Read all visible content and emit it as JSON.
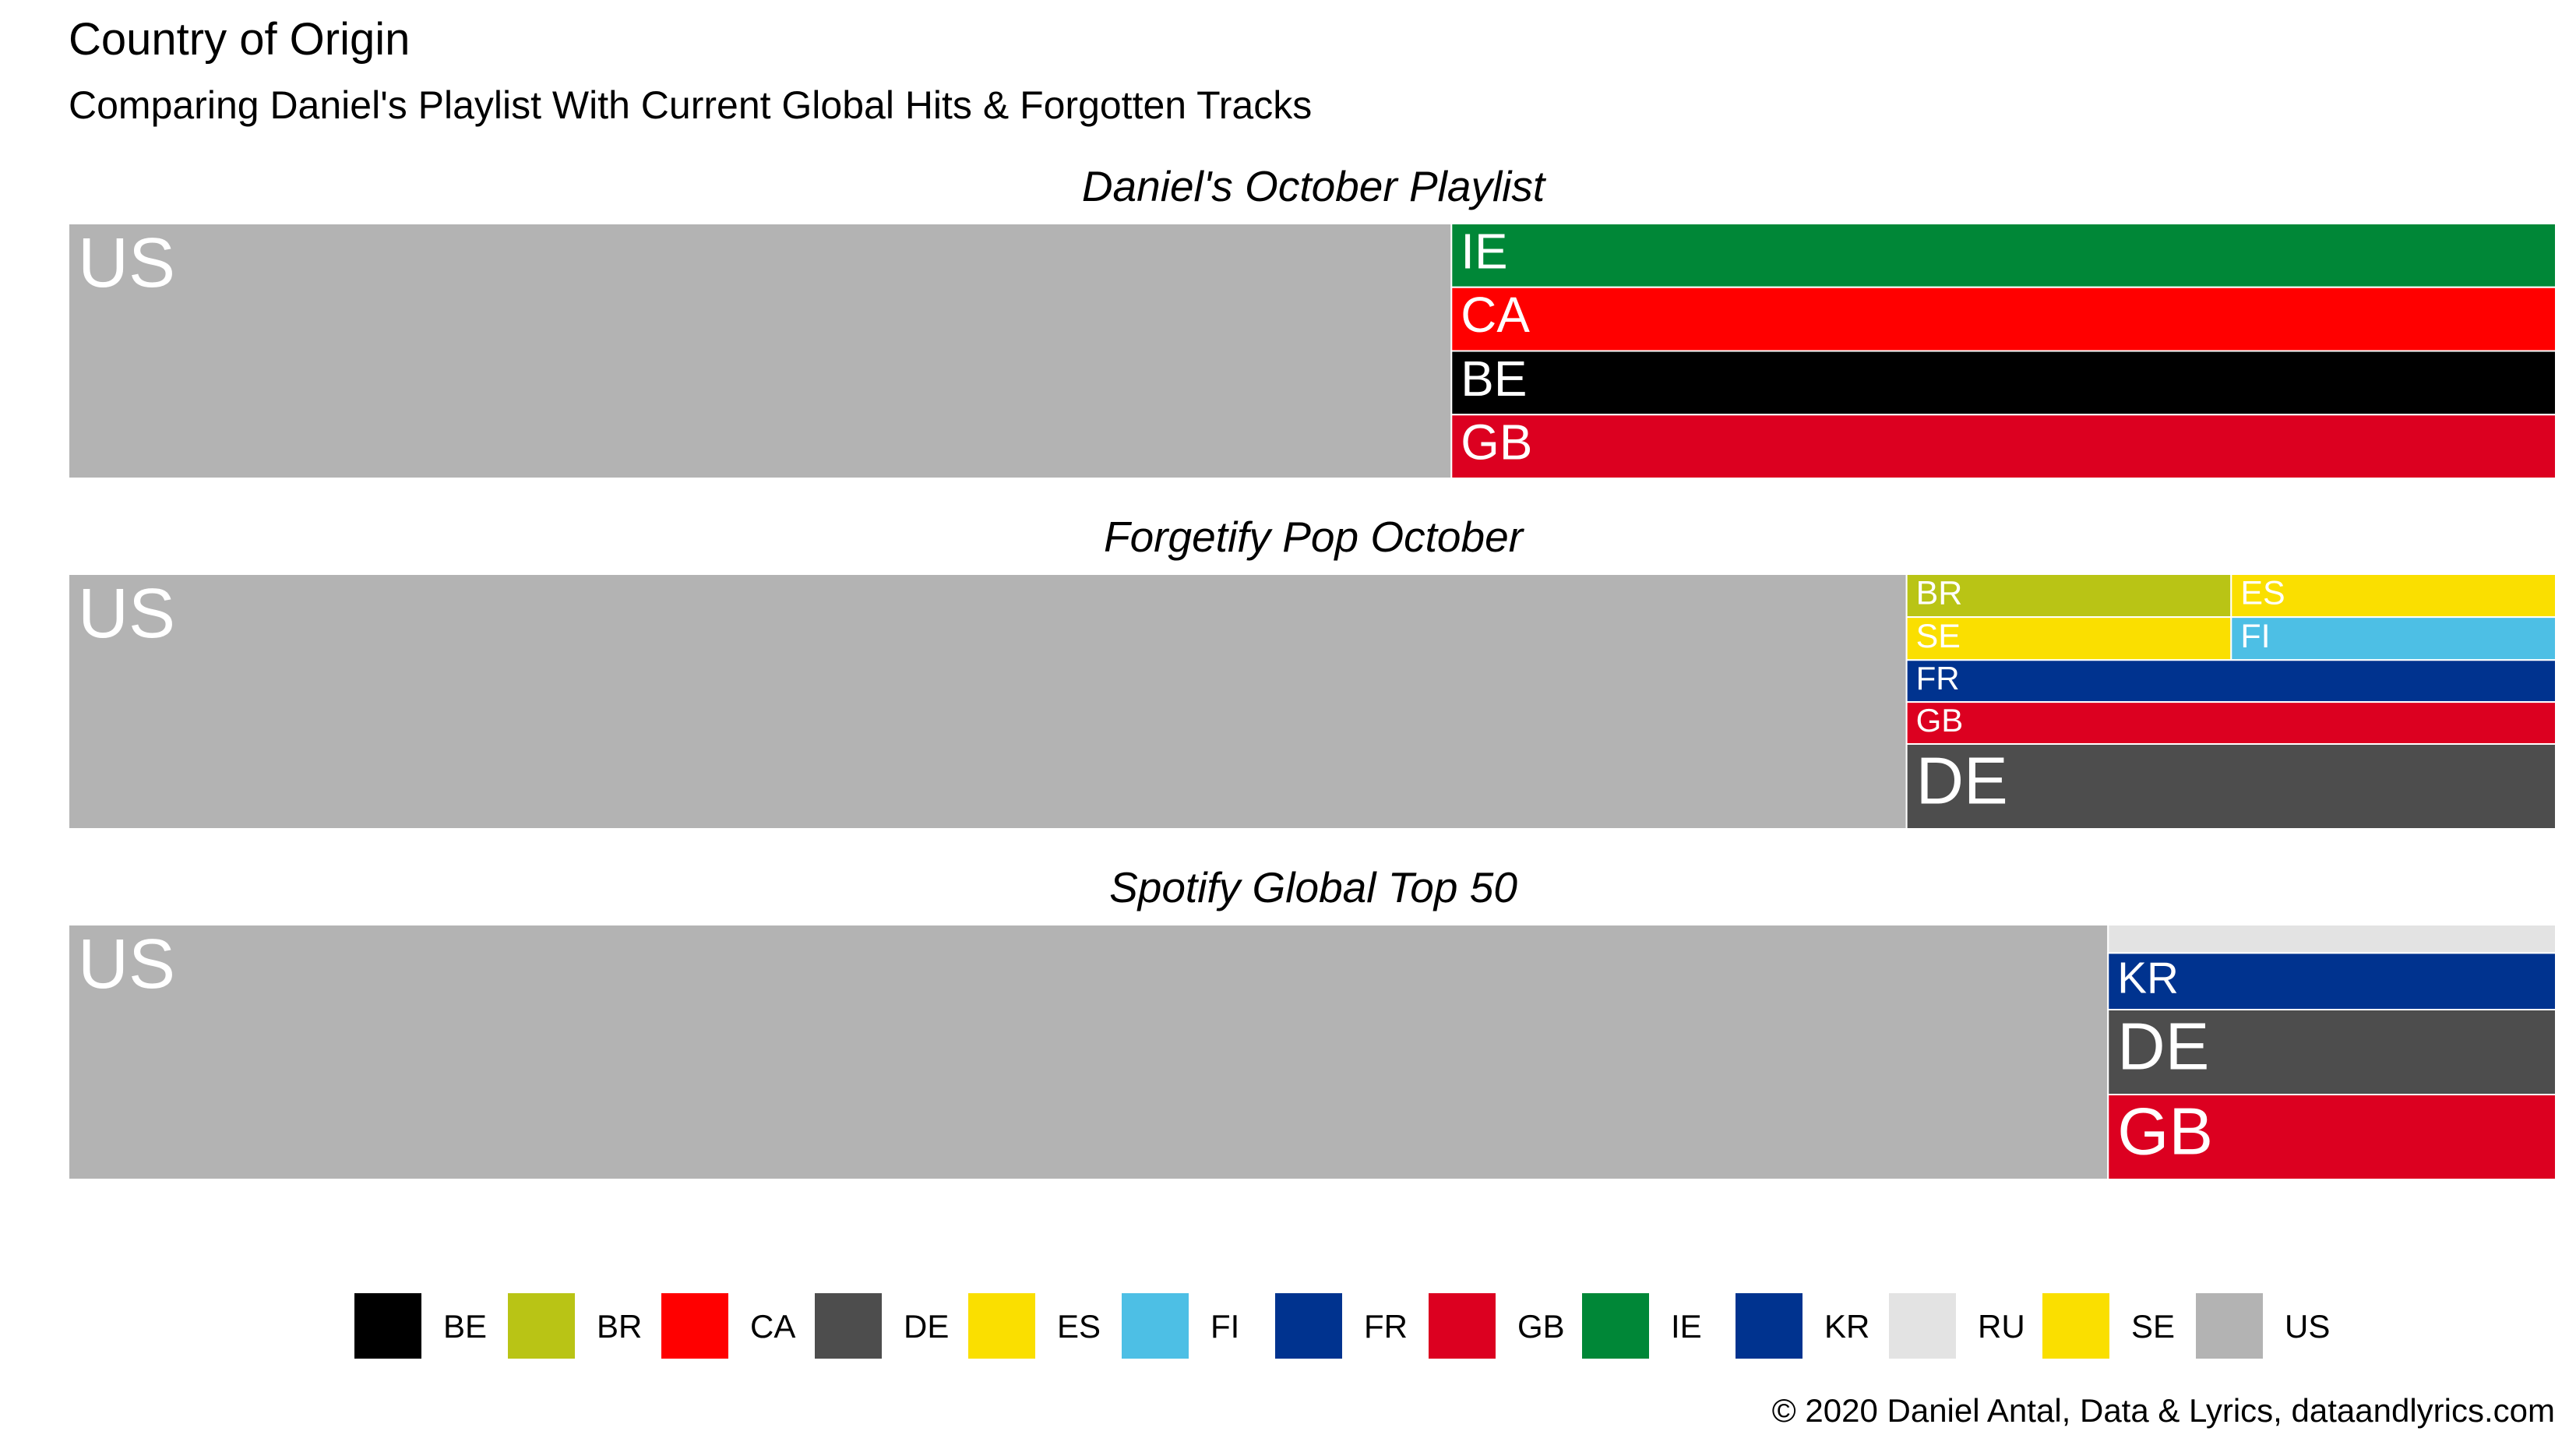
{
  "title": "Country of Origin",
  "subtitle": "Comparing Daniel's Playlist With Current Global Hits & Forgotten Tracks",
  "caption": "© 2020 Daniel Antal, Data & Lyrics, dataandlyrics.com",
  "colors": {
    "BE": "#000000",
    "BR": "#B9C415",
    "CA": "#FF0000",
    "DE": "#4D4D4D",
    "ES": "#FADF00",
    "FI": "#4DBFE5",
    "FR": "#00338F",
    "GB": "#DC0020",
    "IE": "#008737",
    "KR": "#00338F",
    "RU": "#E3E3E3",
    "SE": "#FADF00",
    "US": "#B3B3B3"
  },
  "legend": [
    "BE",
    "BR",
    "CA",
    "DE",
    "ES",
    "FI",
    "FR",
    "GB",
    "IE",
    "KR",
    "RU",
    "SE",
    "US"
  ],
  "chart_data": {
    "type": "treemap",
    "value_unit": "share of tracks (%)",
    "facets": [
      {
        "title": "Daniel's October Playlist",
        "items": [
          {
            "country": "US",
            "value": 55.6
          },
          {
            "country": "IE",
            "value": 11.1
          },
          {
            "country": "CA",
            "value": 11.1
          },
          {
            "country": "BE",
            "value": 11.1
          },
          {
            "country": "GB",
            "value": 11.1
          }
        ]
      },
      {
        "title": "Forgetify Pop October",
        "items": [
          {
            "country": "US",
            "value": 73.9
          },
          {
            "country": "BR",
            "value": 2.2
          },
          {
            "country": "ES",
            "value": 2.2
          },
          {
            "country": "SE",
            "value": 2.2
          },
          {
            "country": "FI",
            "value": 2.2
          },
          {
            "country": "FR",
            "value": 4.3
          },
          {
            "country": "GB",
            "value": 4.3
          },
          {
            "country": "DE",
            "value": 8.7
          }
        ]
      },
      {
        "title": "Spotify Global Top 50",
        "items": [
          {
            "country": "US",
            "value": 82
          },
          {
            "country": "RU",
            "value": 2
          },
          {
            "country": "KR",
            "value": 4
          },
          {
            "country": "DE",
            "value": 6
          },
          {
            "country": "GB",
            "value": 6
          }
        ]
      }
    ]
  }
}
